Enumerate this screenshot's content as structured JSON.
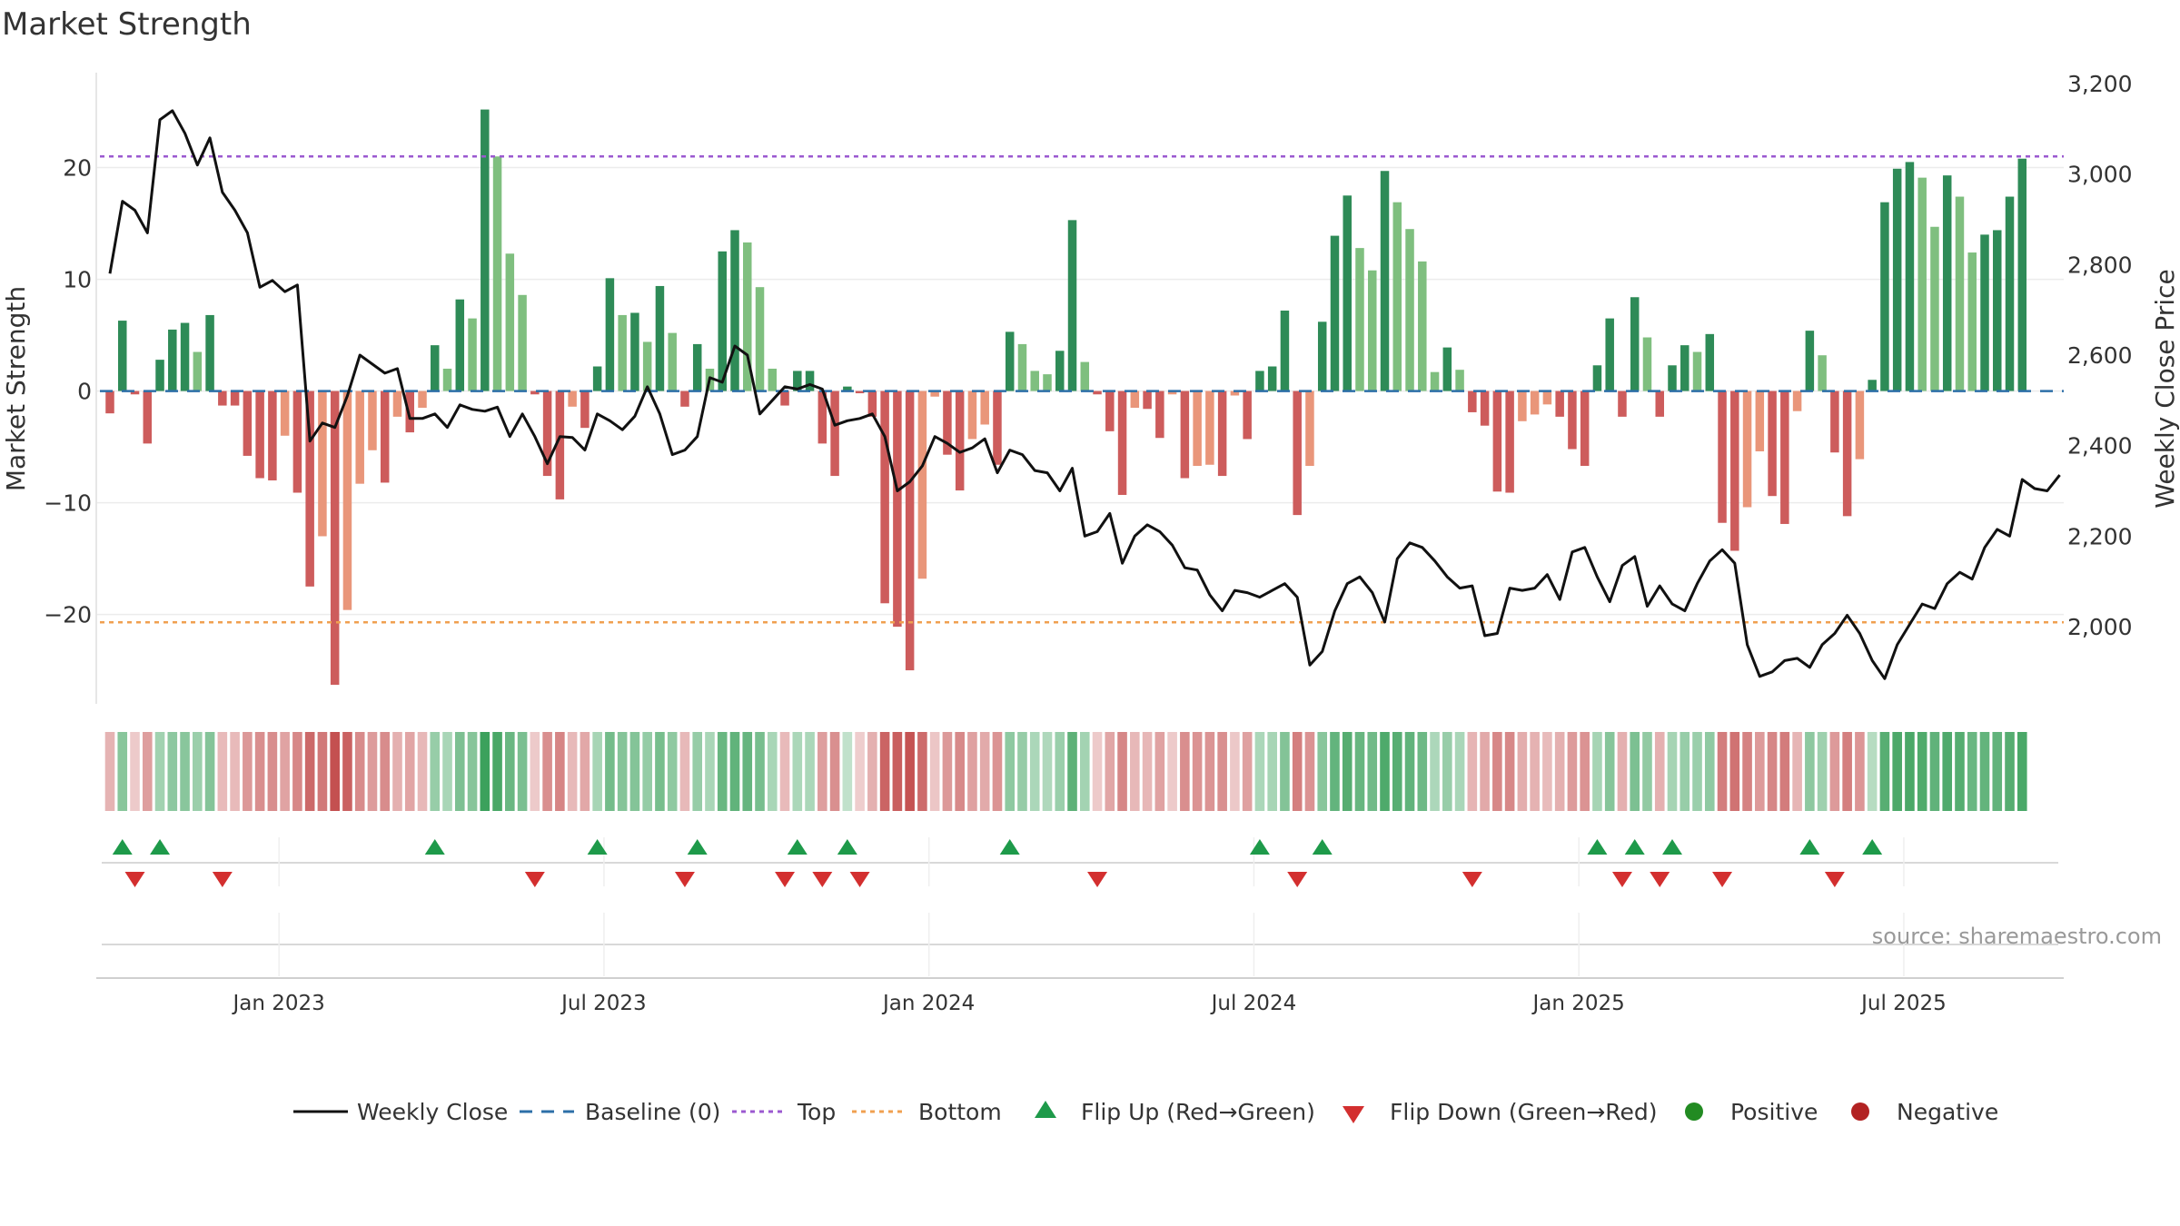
{
  "chart_data": {
    "type": "bar",
    "title": "Market Strength",
    "ylabel": "Market Strength",
    "y2label": "Weekly Close Price",
    "ylim": [
      -28,
      28.5
    ],
    "y2lim": [
      1800,
      3200
    ],
    "yticks": [
      -20,
      -10,
      0,
      10,
      20
    ],
    "yticklabels": [
      "−20",
      "−10",
      "0",
      "10",
      "20"
    ],
    "y2ticks": [
      2000,
      2200,
      2400,
      2600,
      2800,
      3000,
      3200
    ],
    "y2ticklabels": [
      "2,000",
      "2,200",
      "2,400",
      "2,600",
      "2,800",
      "3,000",
      "3,200"
    ],
    "xticks": [
      {
        "label": "Jan 2023",
        "week": 14
      },
      {
        "label": "Jul 2023",
        "week": 40
      },
      {
        "label": "Jan 2024",
        "week": 66
      },
      {
        "label": "Jul 2024",
        "week": 92
      },
      {
        "label": "Jan 2025",
        "week": 118
      },
      {
        "label": "Jul 2025",
        "week": 144
      }
    ],
    "top": 21,
    "bottom": -20.7,
    "source": "source: sharemaestro.com",
    "strength": [
      -2,
      6.3,
      -0.3,
      -4.7,
      2.8,
      5.5,
      6.1,
      3.5,
      6.8,
      -1.3,
      -1.3,
      -5.8,
      -7.8,
      -8,
      -4,
      -9.1,
      -17.5,
      -13,
      -26.3,
      -19.6,
      -8.3,
      -5.3,
      -8.2,
      -2.3,
      -3.7,
      -1.5,
      4.1,
      2,
      8.2,
      6.5,
      25.2,
      21,
      12.3,
      8.6,
      -0.3,
      -7.6,
      -9.7,
      -1.4,
      -3.3,
      2.2,
      10.1,
      6.8,
      7,
      4.4,
      9.4,
      5.2,
      -1.4,
      4.2,
      2,
      12.5,
      14.4,
      13.3,
      9.3,
      2,
      -1.3,
      1.8,
      1.8,
      -4.7,
      -7.6,
      0.4,
      -0.2,
      -2.3,
      -19,
      -21.1,
      -25,
      -16.8,
      -0.5,
      -5.7,
      -8.9,
      -4.3,
      -3,
      -6.6,
      5.3,
      4.2,
      1.8,
      1.5,
      3.6,
      15.3,
      2.6,
      -0.3,
      -3.6,
      -9.3,
      -1.5,
      -1.6,
      -4.2,
      -0.3,
      -7.8,
      -6.7,
      -6.6,
      -7.6,
      -0.4,
      -4.3,
      1.8,
      2.2,
      7.2,
      -11.1,
      -6.7,
      6.2,
      13.9,
      17.5,
      12.8,
      10.8,
      19.7,
      16.9,
      14.5,
      11.6,
      1.7,
      3.9,
      1.9,
      -1.9,
      -3.1,
      -9,
      -9.1,
      -2.7,
      -2.1,
      -1.2,
      -2.3,
      -5.2,
      -6.7,
      2.3,
      6.5,
      -2.3,
      8.4,
      4.8,
      -2.3,
      2.3,
      4.1,
      3.5,
      5.1,
      -11.8,
      -14.3,
      -10.4,
      -5.4,
      -9.4,
      -11.9,
      -1.8,
      5.4,
      3.2,
      -5.5,
      -11.2,
      -6.1,
      1,
      16.9,
      19.9,
      20.5,
      19.1,
      14.7,
      19.3,
      17.4,
      12.4,
      14,
      14.4,
      17.4,
      20.8
    ],
    "weekly_close": [
      2780,
      2940,
      2920,
      2870,
      3120,
      3140,
      3090,
      3020,
      3080,
      2960,
      2920,
      2870,
      2750,
      2765,
      2740,
      2755,
      2410,
      2450,
      2440,
      2510,
      2600,
      2580,
      2560,
      2570,
      2460,
      2460,
      2470,
      2440,
      2490,
      2480,
      2476,
      2485,
      2420,
      2470,
      2420,
      2360,
      2420,
      2418,
      2390,
      2470,
      2455,
      2435,
      2465,
      2530,
      2470,
      2380,
      2390,
      2420,
      2550,
      2540,
      2620,
      2600,
      2470,
      2500,
      2530,
      2525,
      2535,
      2525,
      2445,
      2455,
      2460,
      2470,
      2420,
      2300,
      2320,
      2355,
      2420,
      2405,
      2385,
      2395,
      2415,
      2340,
      2390,
      2380,
      2345,
      2340,
      2300,
      2350,
      2200,
      2210,
      2250,
      2140,
      2200,
      2225,
      2210,
      2180,
      2130,
      2125,
      2070,
      2035,
      2080,
      2075,
      2065,
      2080,
      2095,
      2065,
      1915,
      1945,
      2035,
      2095,
      2110,
      2075,
      2010,
      2150,
      2185,
      2175,
      2145,
      2110,
      2085,
      2090,
      1980,
      1985,
      2085,
      2080,
      2085,
      2115,
      2060,
      2165,
      2175,
      2110,
      2055,
      2135,
      2155,
      2045,
      2090,
      2050,
      2035,
      2095,
      2145,
      2170,
      2140,
      1960,
      1890,
      1900,
      1925,
      1930,
      1910,
      1960,
      1985,
      2025,
      1985,
      1925,
      1885,
      1960,
      2005,
      2050,
      2040,
      2095,
      2120,
      2105,
      2175,
      2215,
      2200,
      2325,
      2305,
      2300,
      2335
    ]
  },
  "legend": {
    "weekly_close": "Weekly Close",
    "baseline": "Baseline (0)",
    "top": "Top",
    "bottom": "Bottom",
    "flip_up": "Flip Up (Red→Green)",
    "flip_down": "Flip Down (Green→Red)",
    "positive": "Positive",
    "negative": "Negative"
  },
  "colors": {
    "strong_positive": "#2e8b57",
    "weak_positive": "#7fbf7f",
    "strong_negative": "#cd5c5c",
    "weak_negative": "#e9967a",
    "price_line": "#111111",
    "top_line": "#9b59d0",
    "bottom_line": "#f0a050",
    "baseline": "#2d6fa8",
    "flip_up": "#1e9a4a",
    "flip_down": "#d32f2f",
    "positive_marker": "#228b22",
    "negative_marker": "#b22222"
  }
}
